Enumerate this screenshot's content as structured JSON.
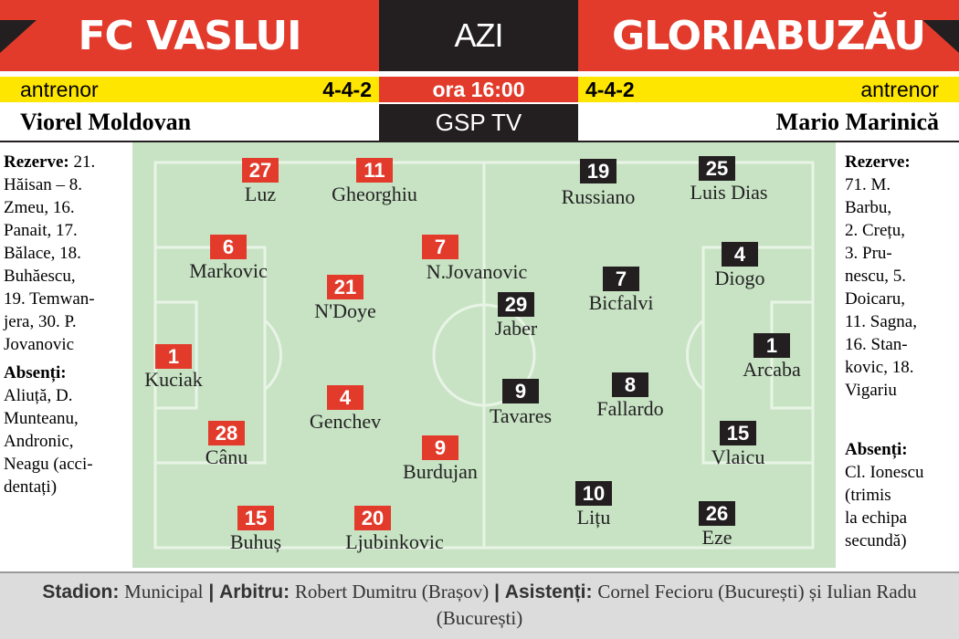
{
  "header": {
    "home_team": "FC VASLUI",
    "center": "AZI",
    "away_team": "GLORIABUZĂU"
  },
  "info": {
    "home_label": "antrenor",
    "home_formation": "4-4-2",
    "time": "ora 16:00",
    "away_formation": "4-4-2",
    "away_label": "antrenor",
    "home_coach": "Viorel Moldovan",
    "tv": "GSP TV",
    "away_coach": "Mario Marinică"
  },
  "home": {
    "reserves_label": "Rezerve:",
    "reserves_lines": [
      "21.",
      "Hăisan – 8.",
      "Zmeu, 16.",
      "Panait, 17.",
      "Bălace, 18.",
      "Buhăescu,",
      "19. Temwan-",
      "jera, 30. P.",
      "Jovanovic"
    ],
    "absent_label": "Absenți:",
    "absent_lines": [
      "Aliuță, D.",
      "Munteanu,",
      "Andronic,",
      "Neagu (acci-",
      "dentați)"
    ],
    "players": [
      {
        "number": 27,
        "name": "Luz"
      },
      {
        "number": 11,
        "name": "Gheorghiu"
      },
      {
        "number": 6,
        "name": "Markovic"
      },
      {
        "number": 7,
        "name": "N.Jovanovic"
      },
      {
        "number": 21,
        "name": "N'Doye"
      },
      {
        "number": 1,
        "name": "Kuciak"
      },
      {
        "number": 4,
        "name": "Genchev"
      },
      {
        "number": 28,
        "name": "Cânu"
      },
      {
        "number": 9,
        "name": "Burdujan"
      },
      {
        "number": 15,
        "name": "Buhuș"
      },
      {
        "number": 20,
        "name": "Ljubinkovic"
      }
    ]
  },
  "away": {
    "reserves_label": "Rezerve:",
    "reserves_lines": [
      "71. M.",
      "Barbu,",
      "2. Crețu,",
      "3. Pru-",
      "nescu, 5.",
      "Doicaru,",
      "11. Sagna,",
      "16. Stan-",
      "kovic, 18.",
      "Vigariu"
    ],
    "absent_label": "Absenți:",
    "absent_lines": [
      "Cl. Ionescu",
      "(trimis",
      "la echipa",
      "secundă)"
    ],
    "players": [
      {
        "number": 19,
        "name": "Russiano"
      },
      {
        "number": 25,
        "name": "Luis Dias"
      },
      {
        "number": 4,
        "name": "Diogo"
      },
      {
        "number": 7,
        "name": "Bicfalvi"
      },
      {
        "number": 29,
        "name": "Jaber"
      },
      {
        "number": 1,
        "name": "Arcaba"
      },
      {
        "number": 9,
        "name": "Tavares"
      },
      {
        "number": 8,
        "name": "Fallardo"
      },
      {
        "number": 15,
        "name": "Vlaicu"
      },
      {
        "number": 10,
        "name": "Lițu"
      },
      {
        "number": 26,
        "name": "Eze"
      }
    ]
  },
  "footer": {
    "separator": "|",
    "items": [
      {
        "label": "Stadion:",
        "text": "Municipal"
      },
      {
        "label": "Arbitru:",
        "text": "Robert Dumitru (Brașov)"
      },
      {
        "label": "Asistenți:",
        "text": "Cornel Fecioru (București) și Iulian Radu (București)"
      }
    ]
  }
}
